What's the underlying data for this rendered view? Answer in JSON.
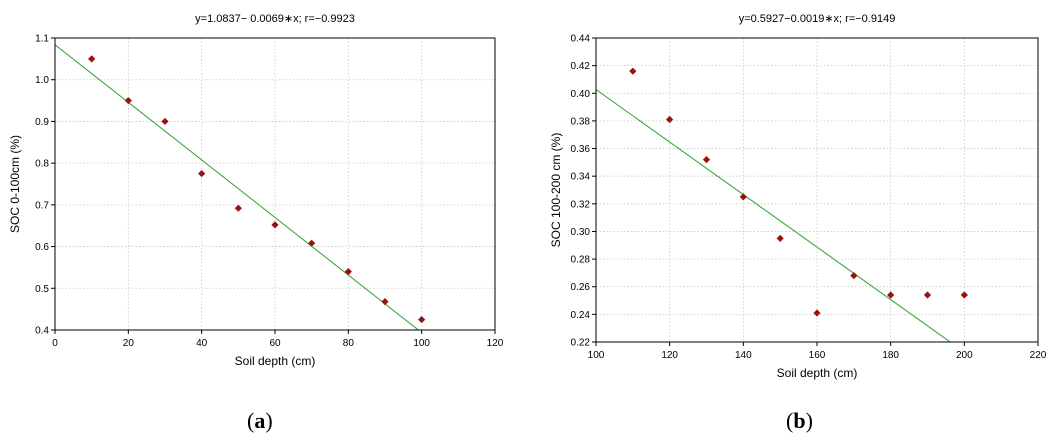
{
  "panel_labels": [
    {
      "open": "(",
      "letter": "a",
      "close": ")"
    },
    {
      "open": "(",
      "letter": "b",
      "close": ")"
    }
  ],
  "chart_data": [
    {
      "type": "scatter",
      "title": "y=1.0837− 0.0069∗x; r=−0.9923",
      "xlabel": "Soil depth (cm)",
      "ylabel": "SOC 0-100cm (%)",
      "xlim": [
        0,
        120
      ],
      "ylim": [
        0.4,
        1.1
      ],
      "x_ticks": [
        0,
        20,
        40,
        60,
        80,
        100,
        120
      ],
      "x_tick_labels": [
        "0",
        "20",
        "40",
        "60",
        "80",
        "100",
        "120"
      ],
      "y_ticks": [
        0.4,
        0.5,
        0.6,
        0.7,
        0.8,
        0.9,
        1.0,
        1.1
      ],
      "y_tick_labels": [
        "0.4",
        "0.5",
        "0.6",
        "0.7",
        "0.8",
        "0.9",
        "1.0",
        "1.1"
      ],
      "grid": true,
      "series": [
        {
          "points": [
            [
              10,
              1.05
            ],
            [
              20,
              0.95
            ],
            [
              30,
              0.9
            ],
            [
              40,
              0.775
            ],
            [
              50,
              0.692
            ],
            [
              60,
              0.652
            ],
            [
              70,
              0.608
            ],
            [
              80,
              0.54
            ],
            [
              90,
              0.468
            ],
            [
              100,
              0.425
            ]
          ]
        }
      ],
      "fit_line": {
        "intercept": 1.0837,
        "slope": -0.0069
      },
      "colors": {
        "points": "#9b1111",
        "fit_line": "#2ca02c",
        "grid": "#c8c8c8"
      }
    },
    {
      "type": "scatter",
      "title": "y=0.5927−0.0019∗x; r=−0.9149",
      "xlabel": "Soil depth (cm)",
      "ylabel": "SOC 100-200 cm (%)",
      "xlim": [
        100,
        220
      ],
      "ylim": [
        0.22,
        0.44
      ],
      "x_ticks": [
        100,
        120,
        140,
        160,
        180,
        200,
        220
      ],
      "x_tick_labels": [
        "100",
        "120",
        "140",
        "160",
        "180",
        "200",
        "220"
      ],
      "y_ticks": [
        0.22,
        0.24,
        0.26,
        0.28,
        0.3,
        0.32,
        0.34,
        0.36,
        0.38,
        0.4,
        0.42,
        0.44
      ],
      "y_tick_labels": [
        "0.22",
        "0.24",
        "0.26",
        "0.28",
        "0.30",
        "0.32",
        "0.34",
        "0.36",
        "0.38",
        "0.40",
        "0.42",
        "0.44"
      ],
      "grid": true,
      "series": [
        {
          "points": [
            [
              110,
              0.416
            ],
            [
              120,
              0.381
            ],
            [
              130,
              0.352
            ],
            [
              140,
              0.325
            ],
            [
              150,
              0.295
            ],
            [
              160,
              0.241
            ],
            [
              170,
              0.268
            ],
            [
              180,
              0.254
            ],
            [
              190,
              0.254
            ],
            [
              200,
              0.254
            ]
          ]
        }
      ],
      "fit_line": {
        "intercept": 0.5927,
        "slope": -0.0019
      },
      "colors": {
        "points": "#9b1111",
        "fit_line": "#2ca02c",
        "grid": "#c8c8c8"
      }
    }
  ]
}
